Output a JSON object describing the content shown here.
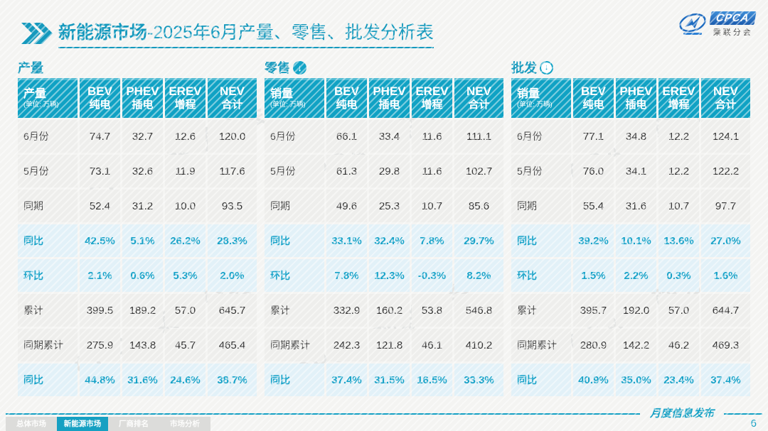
{
  "accent": "#12a3c6",
  "header": {
    "title_bold": "新能源市场",
    "title_rest": "-2025年6月产量、零售、批发分析表",
    "logo": {
      "cpca": "CPCA",
      "org": "乘联分会"
    }
  },
  "columns": [
    {
      "en": "BEV",
      "cn": "纯电"
    },
    {
      "en": "PHEV",
      "cn": "插电"
    },
    {
      "en": "EREV",
      "cn": "增程"
    },
    {
      "en": "NEV",
      "cn": "合计"
    }
  ],
  "tables": [
    {
      "section": "产量",
      "icon": "none",
      "label_header": "产量",
      "unit": "(单位: 万辆)",
      "rows": [
        {
          "label": "6月份",
          "values": [
            "74.7",
            "32.7",
            "12.6",
            "120.0"
          ],
          "highlight": false
        },
        {
          "label": "5月份",
          "values": [
            "73.1",
            "32.6",
            "11.9",
            "117.6"
          ],
          "highlight": false
        },
        {
          "label": "同期",
          "values": [
            "52.4",
            "31.2",
            "10.0",
            "93.5"
          ],
          "highlight": false
        },
        {
          "label": "同比",
          "values": [
            "42.5%",
            "5.1%",
            "26.2%",
            "28.3%"
          ],
          "highlight": true
        },
        {
          "label": "环比",
          "values": [
            "2.1%",
            "0.6%",
            "5.3%",
            "2.0%"
          ],
          "highlight": true
        },
        {
          "label": "累计",
          "values": [
            "399.5",
            "189.2",
            "57.0",
            "645.7"
          ],
          "highlight": false
        },
        {
          "label": "同期累计",
          "values": [
            "275.9",
            "143.8",
            "45.7",
            "465.4"
          ],
          "highlight": false
        },
        {
          "label": "同比",
          "values": [
            "44.8%",
            "31.6%",
            "24.6%",
            "38.7%"
          ],
          "highlight": true
        }
      ]
    },
    {
      "section": "零售",
      "icon": "down-arrow-solid",
      "label_header": "销量",
      "unit": "(单位: 万辆)",
      "rows": [
        {
          "label": "6月份",
          "values": [
            "66.1",
            "33.4",
            "11.6",
            "111.1"
          ],
          "highlight": false
        },
        {
          "label": "5月份",
          "values": [
            "61.3",
            "29.8",
            "11.6",
            "102.7"
          ],
          "highlight": false
        },
        {
          "label": "同期",
          "values": [
            "49.6",
            "25.3",
            "10.7",
            "85.6"
          ],
          "highlight": false
        },
        {
          "label": "同比",
          "values": [
            "33.1%",
            "32.4%",
            "7.8%",
            "29.7%"
          ],
          "highlight": true
        },
        {
          "label": "环比",
          "values": [
            "7.8%",
            "12.3%",
            "-0.3%",
            "8.2%"
          ],
          "highlight": true
        },
        {
          "label": "累计",
          "values": [
            "332.9",
            "160.2",
            "53.8",
            "546.8"
          ],
          "highlight": false
        },
        {
          "label": "同期累计",
          "values": [
            "242.3",
            "121.8",
            "46.1",
            "410.2"
          ],
          "highlight": false
        },
        {
          "label": "同比",
          "values": [
            "37.4%",
            "31.5%",
            "16.5%",
            "33.3%"
          ],
          "highlight": true
        }
      ]
    },
    {
      "section": "批发",
      "icon": "down-arrow-outline",
      "label_header": "销量",
      "unit": "(单位: 万辆)",
      "rows": [
        {
          "label": "6月份",
          "values": [
            "77.1",
            "34.8",
            "12.2",
            "124.1"
          ],
          "highlight": false
        },
        {
          "label": "5月份",
          "values": [
            "76.0",
            "34.1",
            "12.2",
            "122.2"
          ],
          "highlight": false
        },
        {
          "label": "同期",
          "values": [
            "55.4",
            "31.6",
            "10.7",
            "97.7"
          ],
          "highlight": false
        },
        {
          "label": "同比",
          "values": [
            "39.2%",
            "10.1%",
            "13.6%",
            "27.0%"
          ],
          "highlight": true
        },
        {
          "label": "环比",
          "values": [
            "1.5%",
            "2.2%",
            "0.3%",
            "1.6%"
          ],
          "highlight": true
        },
        {
          "label": "累计",
          "values": [
            "395.7",
            "192.0",
            "57.0",
            "644.7"
          ],
          "highlight": false
        },
        {
          "label": "同期累计",
          "values": [
            "280.9",
            "142.2",
            "46.2",
            "469.3"
          ],
          "highlight": false
        },
        {
          "label": "同比",
          "values": [
            "40.9%",
            "35.0%",
            "23.4%",
            "37.4%"
          ],
          "highlight": true
        }
      ]
    }
  ],
  "watermark": {
    "text": "CPCA 乘联分会"
  },
  "footer": {
    "tabs": [
      {
        "label": "总体市场",
        "active": false
      },
      {
        "label": "新能源市场",
        "active": true
      },
      {
        "label": "厂商排名",
        "active": false
      },
      {
        "label": "市场分析",
        "active": false
      }
    ],
    "note": "月度信息发布",
    "page": "6"
  }
}
